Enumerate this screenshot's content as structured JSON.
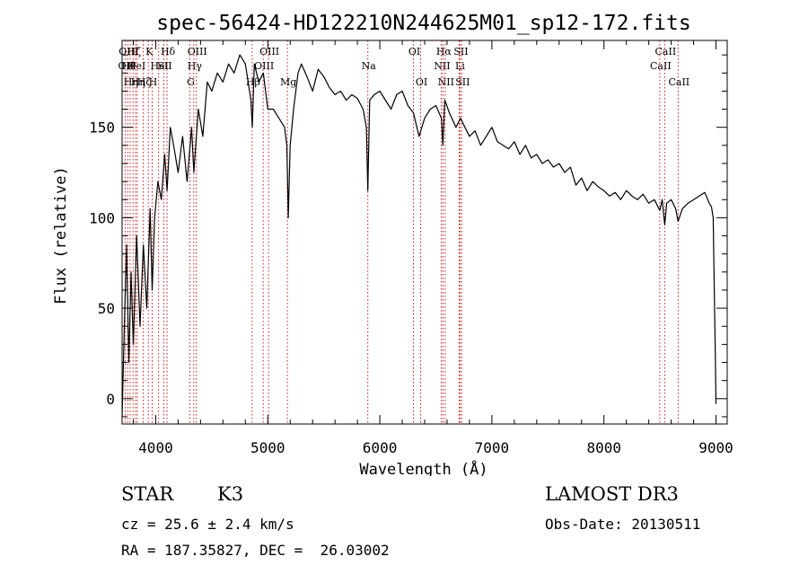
{
  "chart_data": {
    "type": "line",
    "title": "spec-56424-HD122210N244625M01_sp12-172.fits",
    "xlabel": "Wavelength (Å)",
    "ylabel": "Flux (relative)",
    "xlim": [
      3700,
      9100
    ],
    "ylim": [
      -14,
      198
    ],
    "xticks": [
      4000,
      5000,
      6000,
      7000,
      8000,
      9000
    ],
    "yticks": [
      0,
      50,
      100,
      150
    ],
    "xtick_labels": [
      "4000",
      "5000",
      "6000",
      "7000",
      "8000",
      "9000"
    ],
    "ytick_labels": [
      "0",
      "50",
      "100",
      "150"
    ],
    "line_color": "#000000",
    "marker_color": "#cc0000",
    "series": [
      {
        "name": "flux",
        "x": [
          3700,
          3720,
          3740,
          3760,
          3780,
          3800,
          3830,
          3860,
          3890,
          3920,
          3950,
          3968,
          3990,
          4020,
          4050,
          4080,
          4101,
          4130,
          4160,
          4200,
          4240,
          4280,
          4320,
          4340,
          4380,
          4420,
          4460,
          4500,
          4550,
          4600,
          4650,
          4700,
          4750,
          4800,
          4850,
          4862,
          4880,
          4920,
          4960,
          5000,
          5050,
          5100,
          5150,
          5170,
          5183,
          5200,
          5230,
          5270,
          5300,
          5350,
          5400,
          5450,
          5500,
          5550,
          5600,
          5650,
          5700,
          5750,
          5800,
          5850,
          5880,
          5893,
          5910,
          5950,
          6000,
          6050,
          6100,
          6150,
          6200,
          6250,
          6300,
          6350,
          6400,
          6450,
          6500,
          6550,
          6563,
          6580,
          6620,
          6680,
          6720,
          6760,
          6800,
          6850,
          6900,
          6950,
          7000,
          7050,
          7100,
          7150,
          7200,
          7250,
          7300,
          7350,
          7400,
          7450,
          7500,
          7550,
          7600,
          7650,
          7700,
          7750,
          7800,
          7850,
          7900,
          7950,
          8000,
          8050,
          8100,
          8150,
          8200,
          8250,
          8300,
          8350,
          8400,
          8450,
          8498,
          8520,
          8542,
          8560,
          8600,
          8640,
          8662,
          8700,
          8750,
          8800,
          8850,
          8900,
          8940,
          8960,
          8975,
          8985,
          8995,
          9000
        ],
        "values": [
          -10,
          40,
          85,
          20,
          70,
          30,
          90,
          40,
          85,
          50,
          105,
          60,
          100,
          120,
          110,
          135,
          115,
          150,
          140,
          125,
          145,
          120,
          150,
          125,
          160,
          145,
          175,
          170,
          180,
          175,
          185,
          180,
          190,
          185,
          165,
          150,
          185,
          175,
          180,
          160,
          160,
          155,
          150,
          140,
          100,
          140,
          160,
          180,
          185,
          178,
          170,
          182,
          178,
          172,
          168,
          170,
          165,
          168,
          166,
          160,
          150,
          115,
          165,
          168,
          170,
          165,
          160,
          168,
          170,
          162,
          158,
          145,
          155,
          160,
          162,
          155,
          140,
          165,
          158,
          150,
          155,
          150,
          145,
          148,
          140,
          145,
          150,
          142,
          140,
          138,
          142,
          135,
          140,
          133,
          135,
          130,
          132,
          128,
          130,
          125,
          128,
          118,
          122,
          115,
          120,
          117,
          115,
          112,
          114,
          110,
          115,
          112,
          110,
          113,
          108,
          110,
          104,
          110,
          96,
          108,
          110,
          105,
          98,
          105,
          108,
          110,
          112,
          114,
          108,
          106,
          100,
          60,
          20,
          -3
        ]
      }
    ],
    "line_markers": [
      {
        "wavelength": 3727,
        "labels": [
          "OII"
        ],
        "row": 1
      },
      {
        "wavelength": 3750,
        "labels": [
          "OIII",
          "Hθ"
        ],
        "row": 0
      },
      {
        "wavelength": 3771,
        "labels": [
          "Hη"
        ],
        "row": 2
      },
      {
        "wavelength": 3798,
        "labels": [
          "Hζ"
        ],
        "row": 0
      },
      {
        "wavelength": 3820,
        "labels": [
          "HeI"
        ],
        "row": 1
      },
      {
        "wavelength": 3835,
        "labels": [
          "Hη"
        ],
        "row": 2
      },
      {
        "wavelength": 3889,
        "labels": [
          "Hζ"
        ],
        "row": 2
      },
      {
        "wavelength": 3934,
        "labels": [
          "K"
        ],
        "row": 0
      },
      {
        "wavelength": 3968,
        "labels": [
          "H"
        ],
        "row": 2
      },
      {
        "wavelength": 4026,
        "labels": [
          "HeI"
        ],
        "row": 1
      },
      {
        "wavelength": 4072,
        "labels": [
          "SII"
        ],
        "row": 1
      },
      {
        "wavelength": 4101,
        "labels": [
          "Hδ"
        ],
        "row": 0
      },
      {
        "wavelength": 4305,
        "labels": [
          "G"
        ],
        "row": 2
      },
      {
        "wavelength": 4340,
        "labels": [
          "Hγ"
        ],
        "row": 1
      },
      {
        "wavelength": 4363,
        "labels": [
          "OIII"
        ],
        "row": 0
      },
      {
        "wavelength": 4861,
        "labels": [
          "Hβ"
        ],
        "row": 2
      },
      {
        "wavelength": 4959,
        "labels": [
          "OIII"
        ],
        "row": 1
      },
      {
        "wavelength": 5007,
        "labels": [
          "OIII"
        ],
        "row": 0
      },
      {
        "wavelength": 5175,
        "labels": [
          "Mg"
        ],
        "row": 2
      },
      {
        "wavelength": 5893,
        "labels": [
          "Na"
        ],
        "row": 1
      },
      {
        "wavelength": 6300,
        "labels": [
          "OI"
        ],
        "row": 0
      },
      {
        "wavelength": 6364,
        "labels": [
          "OI"
        ],
        "row": 2
      },
      {
        "wavelength": 6548,
        "labels": [
          "NII"
        ],
        "row": 1
      },
      {
        "wavelength": 6563,
        "labels": [
          "Hα"
        ],
        "row": 0
      },
      {
        "wavelength": 6583,
        "labels": [
          "NII"
        ],
        "row": 2
      },
      {
        "wavelength": 6708,
        "labels": [
          "Li"
        ],
        "row": 1
      },
      {
        "wavelength": 6716,
        "labels": [
          "SII"
        ],
        "row": 0
      },
      {
        "wavelength": 6731,
        "labels": [
          "SII"
        ],
        "row": 2
      },
      {
        "wavelength": 8498,
        "labels": [
          "CaII"
        ],
        "row": 1
      },
      {
        "wavelength": 8542,
        "labels": [
          "CaII"
        ],
        "row": 0
      },
      {
        "wavelength": 8662,
        "labels": [
          "CaII"
        ],
        "row": 2
      }
    ]
  },
  "info": {
    "class_label": "STAR",
    "subclass": "K3",
    "survey": "LAMOST DR3",
    "cz": "cz = 25.6 ± 2.4 km/s",
    "obs_date": "Obs-Date: 20130511",
    "coords": "RA = 187.35827, DEC =  26.03002"
  }
}
